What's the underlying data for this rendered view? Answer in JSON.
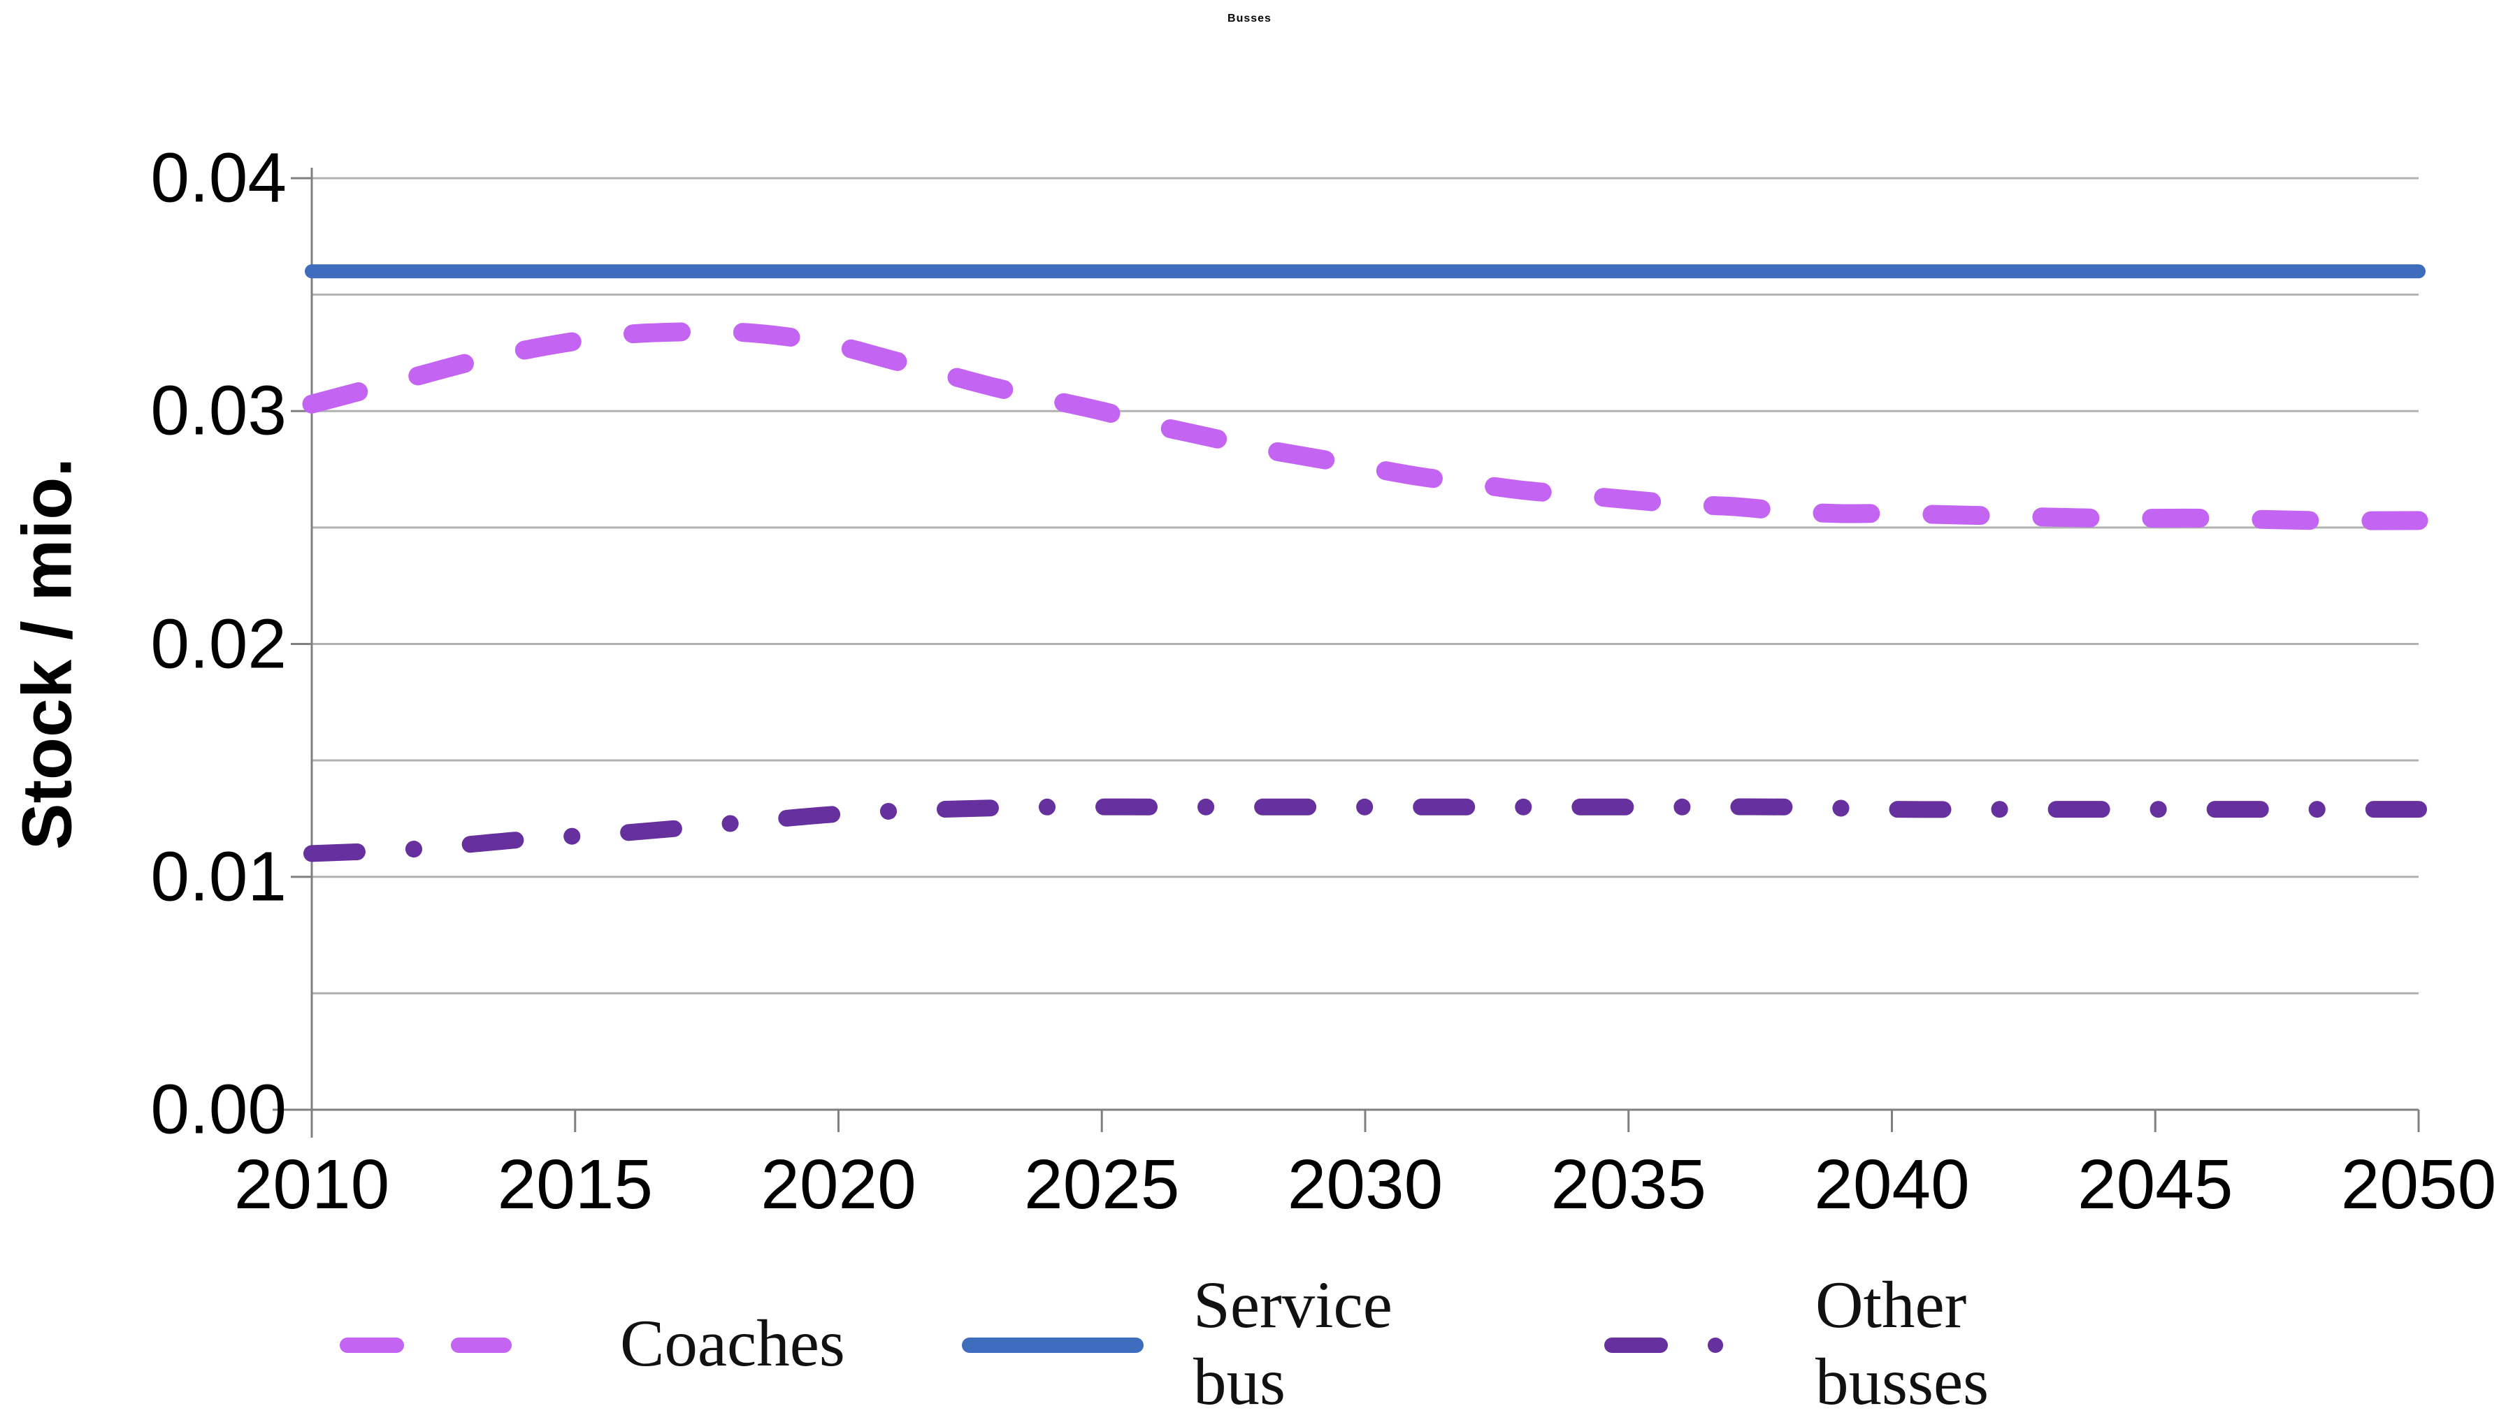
{
  "title": "Busses",
  "ylabel": "Stock / mio.",
  "colors": {
    "coaches": "#C464F2",
    "service_bus": "#3E6DBE",
    "other_busses": "#66309E",
    "gridline": "#B2B2B2",
    "axis": "#808080",
    "text": "#000000"
  },
  "legend": {
    "position": "bottom",
    "items": [
      {
        "label": "Coaches",
        "style": "dashed",
        "color": "#C464F2"
      },
      {
        "label": "Service bus",
        "style": "solid",
        "color": "#3E6DBE"
      },
      {
        "label": "Other busses",
        "style": "dash-dot",
        "color": "#66309E"
      }
    ]
  },
  "chart_data": {
    "type": "line",
    "title": "Busses",
    "xlabel": "",
    "ylabel": "Stock / mio.",
    "xlim": [
      2010,
      2050
    ],
    "ylim": [
      0.0,
      0.04
    ],
    "x_tick_labels": [
      "2010",
      "2015",
      "2020",
      "2025",
      "2030",
      "2035",
      "2040",
      "2045",
      "2050"
    ],
    "x_tick_values": [
      2010,
      2015,
      2020,
      2025,
      2030,
      2035,
      2040,
      2045,
      2050
    ],
    "y_tick_labels": [
      "0.00",
      "0.01",
      "0.02",
      "0.03",
      "0.04"
    ],
    "y_tick_values": [
      0.0,
      0.01,
      0.02,
      0.03,
      0.04
    ],
    "grid": "horizontal gridlines every 0.005",
    "gridline_step": 0.005,
    "legend_position": "bottom",
    "series": [
      {
        "name": "Coaches",
        "color": "#C464F2",
        "dash": "dashed",
        "x": [
          2010,
          2011,
          2012,
          2013,
          2014,
          2015,
          2016,
          2017,
          2018,
          2019,
          2020,
          2021,
          2022,
          2023,
          2024,
          2025,
          2026,
          2027,
          2028,
          2029,
          2030,
          2031,
          2032,
          2033,
          2034,
          2035,
          2036,
          2037,
          2038,
          2039,
          2040,
          2042,
          2044,
          2046,
          2048,
          2050
        ],
        "values": [
          0.0303,
          0.0309,
          0.0315,
          0.0321,
          0.0326,
          0.033,
          0.0333,
          0.0334,
          0.0334,
          0.0332,
          0.0328,
          0.0322,
          0.0316,
          0.031,
          0.0305,
          0.03,
          0.0294,
          0.0289,
          0.0284,
          0.028,
          0.0276,
          0.0272,
          0.0269,
          0.0266,
          0.0264,
          0.0262,
          0.026,
          0.0259,
          0.0257,
          0.0256,
          0.0256,
          0.0255,
          0.0254,
          0.0254,
          0.0253,
          0.0253
        ]
      },
      {
        "name": "Service bus",
        "color": "#3E6DBE",
        "dash": "solid",
        "x": [
          2010,
          2050
        ],
        "values": [
          0.036,
          0.036
        ]
      },
      {
        "name": "Other busses",
        "color": "#66309E",
        "dash": "dash-dot",
        "x": [
          2010,
          2012,
          2014,
          2016,
          2018,
          2020,
          2022,
          2024,
          2026,
          2028,
          2030,
          2032,
          2034,
          2036,
          2038,
          2040,
          2042,
          2044,
          2046,
          2048,
          2050
        ],
        "values": [
          0.011,
          0.0112,
          0.0116,
          0.0119,
          0.0123,
          0.0127,
          0.0129,
          0.013,
          0.013,
          0.013,
          0.013,
          0.013,
          0.013,
          0.013,
          0.013,
          0.0129,
          0.0129,
          0.0129,
          0.0129,
          0.0129,
          0.0129
        ]
      }
    ]
  }
}
